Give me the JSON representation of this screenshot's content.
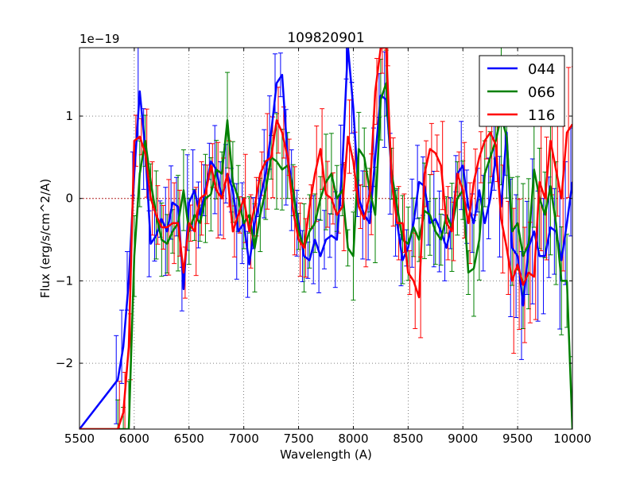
{
  "chart_data": {
    "type": "line",
    "title": "109820901",
    "xlabel": "Wavelength (A)",
    "ylabel": "Flux (erg/s/cm^2/A)",
    "offset_label": "1e−19",
    "scale_exponent": -19,
    "xlim": [
      5500,
      10000
    ],
    "ylim": [
      -2.8,
      1.83
    ],
    "xticks": [
      5500,
      6000,
      6500,
      7000,
      7500,
      8000,
      8500,
      9000,
      9500,
      10000
    ],
    "yticks": [
      1,
      0,
      -1,
      -2
    ],
    "ytick_labels": [
      "1",
      "0",
      "−1",
      "−2"
    ],
    "grid": true,
    "legend_position": "top-right",
    "zero_line": {
      "y": 0,
      "color": "#b22222",
      "style": "dotted"
    },
    "x": [
      5500,
      5850,
      5900,
      5950,
      6000,
      6050,
      6100,
      6150,
      6200,
      6250,
      6300,
      6350,
      6400,
      6450,
      6500,
      6550,
      6600,
      6650,
      6700,
      6750,
      6800,
      6850,
      6900,
      6950,
      7000,
      7050,
      7100,
      7150,
      7200,
      7250,
      7300,
      7350,
      7400,
      7450,
      7500,
      7550,
      7600,
      7650,
      7700,
      7750,
      7800,
      7850,
      7900,
      7950,
      8000,
      8050,
      8100,
      8150,
      8200,
      8250,
      8300,
      8350,
      8400,
      8450,
      8500,
      8550,
      8600,
      8650,
      8700,
      8750,
      8800,
      8850,
      8900,
      8950,
      9000,
      9050,
      9100,
      9150,
      9200,
      9250,
      9300,
      9350,
      9400,
      9450,
      9500,
      9550,
      9600,
      9650,
      9700,
      9750,
      9800,
      9850,
      9900,
      9950,
      10000
    ],
    "series": [
      {
        "name": "044",
        "color": "#0000ff",
        "values": [
          -2.8,
          -2.2,
          -1.8,
          -1.0,
          0.3,
          1.3,
          0.6,
          -0.55,
          -0.45,
          -0.25,
          -0.4,
          -0.05,
          -0.1,
          -1.1,
          -0.05,
          0.1,
          -0.2,
          0.1,
          0.45,
          0.35,
          0.0,
          0.3,
          0.1,
          -0.4,
          -0.3,
          -0.8,
          -0.3,
          0.0,
          0.3,
          0.8,
          1.4,
          1.5,
          0.5,
          0.1,
          -0.3,
          -0.7,
          -0.75,
          -0.5,
          -0.7,
          -0.5,
          -0.45,
          -0.5,
          0.4,
          1.85,
          1.1,
          0.0,
          -0.2,
          -0.3,
          0.5,
          1.25,
          1.2,
          0.3,
          -0.3,
          -0.75,
          -0.6,
          -0.3,
          0.2,
          0.15,
          -0.3,
          -0.25,
          -0.4,
          -0.6,
          -0.3,
          0.3,
          0.4,
          -0.1,
          -0.3,
          0.1,
          -0.3,
          0.0,
          0.5,
          -0.1,
          0.8,
          -0.6,
          -0.7,
          -1.3,
          -0.6,
          -0.4,
          -0.7,
          -0.7,
          -0.35,
          -0.4,
          -0.75,
          -0.3,
          0.2
        ]
      },
      {
        "name": "066",
        "color": "#008000",
        "values": [
          -2.8,
          -2.8,
          -2.8,
          -2.8,
          -0.7,
          0.3,
          0.7,
          0.2,
          -0.2,
          -0.5,
          -0.55,
          -0.4,
          -0.3,
          0.1,
          -0.4,
          -0.2,
          -0.3,
          0.0,
          0.05,
          0.35,
          0.3,
          0.95,
          0.2,
          0.0,
          -0.3,
          -0.2,
          -0.6,
          -0.2,
          0.1,
          0.5,
          0.45,
          0.35,
          0.4,
          0.1,
          -0.4,
          -0.6,
          -0.4,
          -0.3,
          0.0,
          0.2,
          0.3,
          0.0,
          0.1,
          -0.6,
          -0.7,
          0.6,
          0.5,
          0.1,
          -0.2,
          1.2,
          1.4,
          0.3,
          -0.1,
          -0.5,
          -0.55,
          -0.35,
          -0.5,
          -0.15,
          -0.2,
          -0.4,
          -0.5,
          -0.2,
          -0.35,
          0.0,
          0.1,
          -0.9,
          -0.85,
          -0.5,
          0.3,
          0.5,
          0.7,
          1.0,
          0.75,
          -0.4,
          -0.3,
          -0.7,
          -0.55,
          0.35,
          0.0,
          -0.2,
          0.15,
          -0.3,
          -1.0,
          -1.0,
          -2.8
        ]
      },
      {
        "name": "116",
        "color": "#ff0000",
        "values": [
          -2.8,
          -2.8,
          -2.6,
          -1.8,
          0.7,
          0.75,
          0.55,
          0.0,
          -0.2,
          -0.35,
          -0.35,
          -0.3,
          -0.3,
          -0.9,
          -0.3,
          -0.4,
          0.0,
          0.05,
          0.4,
          0.1,
          0.0,
          0.3,
          -0.4,
          -0.2,
          0.0,
          -0.4,
          -0.1,
          0.3,
          0.45,
          0.5,
          0.95,
          0.8,
          0.5,
          -0.15,
          -0.5,
          -0.6,
          -0.1,
          0.3,
          0.6,
          0.05,
          0.0,
          -0.2,
          -0.1,
          0.75,
          0.45,
          -0.1,
          -0.25,
          0.05,
          1.3,
          1.83,
          1.83,
          0.2,
          -0.3,
          -0.3,
          -0.9,
          -1.0,
          -1.2,
          0.3,
          0.6,
          0.55,
          0.4,
          -0.3,
          -0.4,
          0.3,
          0.1,
          -0.3,
          0.2,
          0.5,
          0.7,
          0.8,
          0.65,
          -0.25,
          -0.6,
          -1.0,
          -0.8,
          -1.05,
          -0.9,
          -0.95,
          0.2,
          0.0,
          0.7,
          0.35,
          0.0,
          0.8,
          0.9
        ]
      }
    ]
  }
}
